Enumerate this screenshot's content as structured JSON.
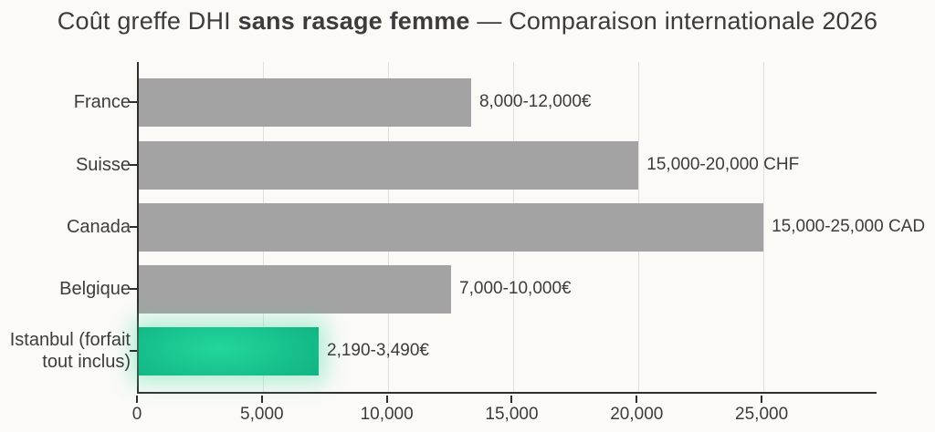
{
  "title": {
    "prefix": "Coût greffe DHI ",
    "bold": "sans rasage femme",
    "suffix": " — Comparaison internationale 2026"
  },
  "chart_data": {
    "type": "bar",
    "orientation": "horizontal",
    "title": "Coût greffe DHI sans rasage femme — Comparaison internationale 2026",
    "grid": "vertical-light",
    "legend": "none",
    "xlim": [
      0,
      29600
    ],
    "x_tick_values": [
      0,
      5000,
      10000,
      15000,
      20000,
      25000
    ],
    "x_tick_labels": [
      "0",
      "5,000",
      "10,000",
      "15,000",
      "20,000",
      "25,000"
    ],
    "rows": [
      {
        "category": "France",
        "value_label": "8,000-12,000€",
        "range_min": 8000,
        "range_max": 12000,
        "currency": "EUR",
        "drawn_bar_value": 13300,
        "highlight": false
      },
      {
        "category": "Suisse",
        "value_label": "15,000-20,000 CHF",
        "range_min": 15000,
        "range_max": 20000,
        "currency": "CHF",
        "drawn_bar_value": 20000,
        "highlight": false
      },
      {
        "category": "Canada",
        "value_label": "15,000-25,000 CAD",
        "range_min": 15000,
        "range_max": 25000,
        "currency": "CAD",
        "drawn_bar_value": 25000,
        "highlight": false
      },
      {
        "category": "Belgique",
        "value_label": "7,000-10,000€",
        "range_min": 7000,
        "range_max": 10000,
        "currency": "EUR",
        "drawn_bar_value": 12500,
        "highlight": false
      },
      {
        "category": "Istanbul (forfait tout inclus)",
        "value_label": "2,190-3,490€",
        "range_min": 2190,
        "range_max": 3490,
        "currency": "EUR",
        "drawn_bar_value": 7200,
        "highlight": true
      }
    ],
    "colors": {
      "background": "#fbfaf7",
      "bar": "#a3a3a3",
      "highlight_bar": "#14bb88",
      "highlight_glow": "#52e0aa",
      "axis": "#2e2e2e",
      "gridline": "#e3e0da",
      "text": "#3c3c3c"
    }
  }
}
